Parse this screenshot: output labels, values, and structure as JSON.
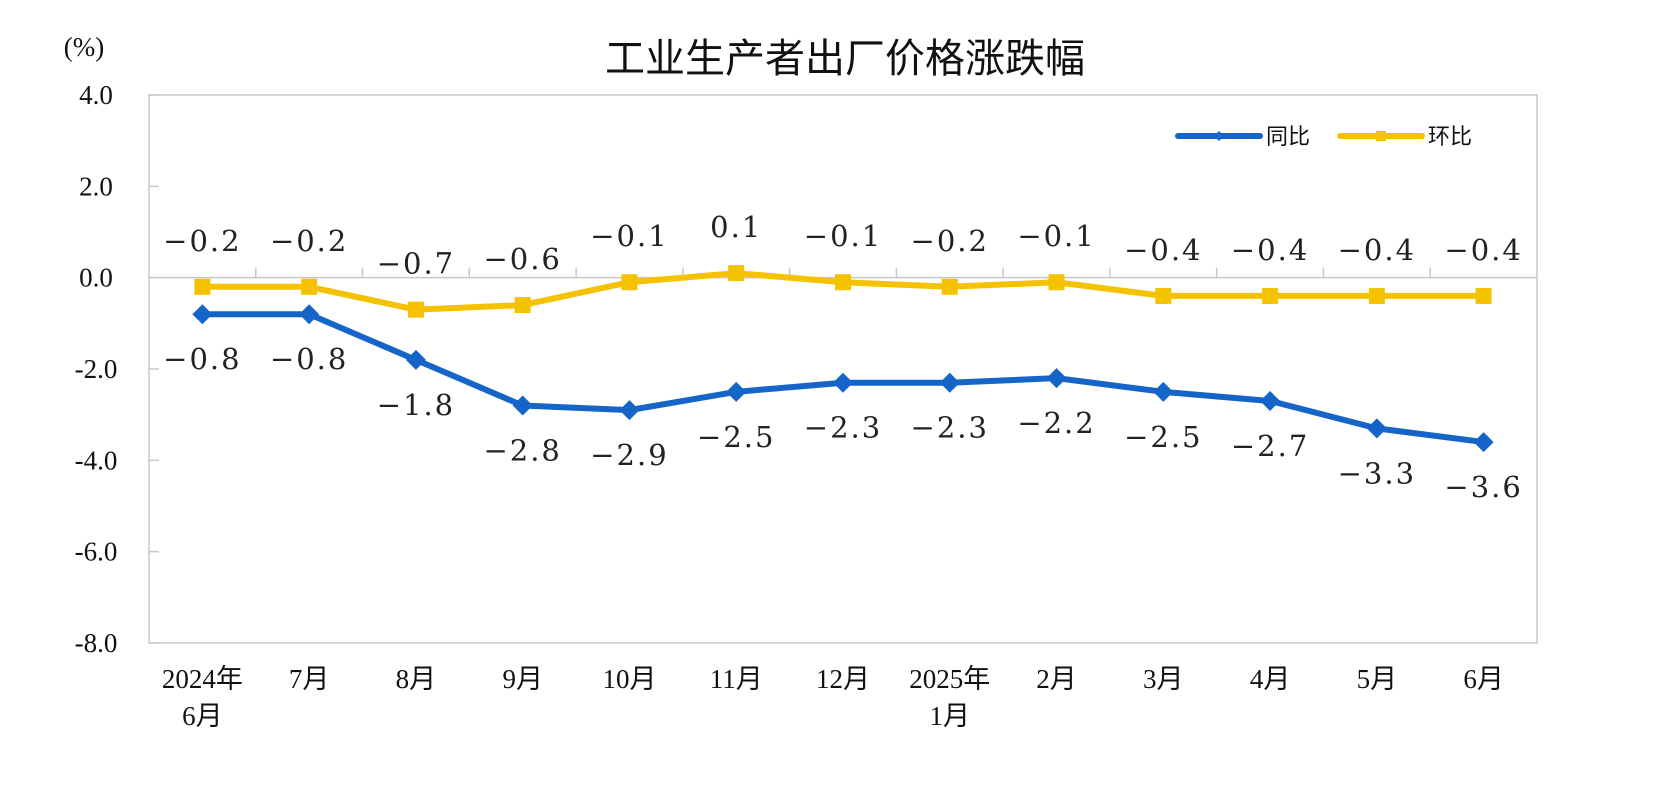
{
  "chart_data": {
    "type": "line",
    "title": "工业生产者出厂价格涨跌幅",
    "ylabel": "(%)",
    "ylim": [
      -8.0,
      4.0
    ],
    "yticks": [
      "4.0",
      "2.0",
      "0.0",
      "-2.0",
      "-4.0",
      "-6.0",
      "-8.0"
    ],
    "categories": [
      [
        "2024年",
        "6月"
      ],
      [
        "7月"
      ],
      [
        "8月"
      ],
      [
        "9月"
      ],
      [
        "10月"
      ],
      [
        "11月"
      ],
      [
        "12月"
      ],
      [
        "2025年",
        "1月"
      ],
      [
        "2月"
      ],
      [
        "3月"
      ],
      [
        "4月"
      ],
      [
        "5月"
      ],
      [
        "6月"
      ]
    ],
    "legend_position": "top-right",
    "grid": false,
    "series": [
      {
        "name": "同比",
        "color": "#1565c8",
        "marker": "diamond",
        "values": [
          -0.8,
          -0.8,
          -1.8,
          -2.8,
          -2.9,
          -2.5,
          -2.3,
          -2.3,
          -2.2,
          -2.5,
          -2.7,
          -3.3,
          -3.6
        ]
      },
      {
        "name": "环比",
        "color": "#f5c200",
        "marker": "square",
        "values": [
          -0.2,
          -0.2,
          -0.7,
          -0.6,
          -0.1,
          0.1,
          -0.1,
          -0.2,
          -0.1,
          -0.4,
          -0.4,
          -0.4,
          -0.4
        ]
      }
    ]
  }
}
